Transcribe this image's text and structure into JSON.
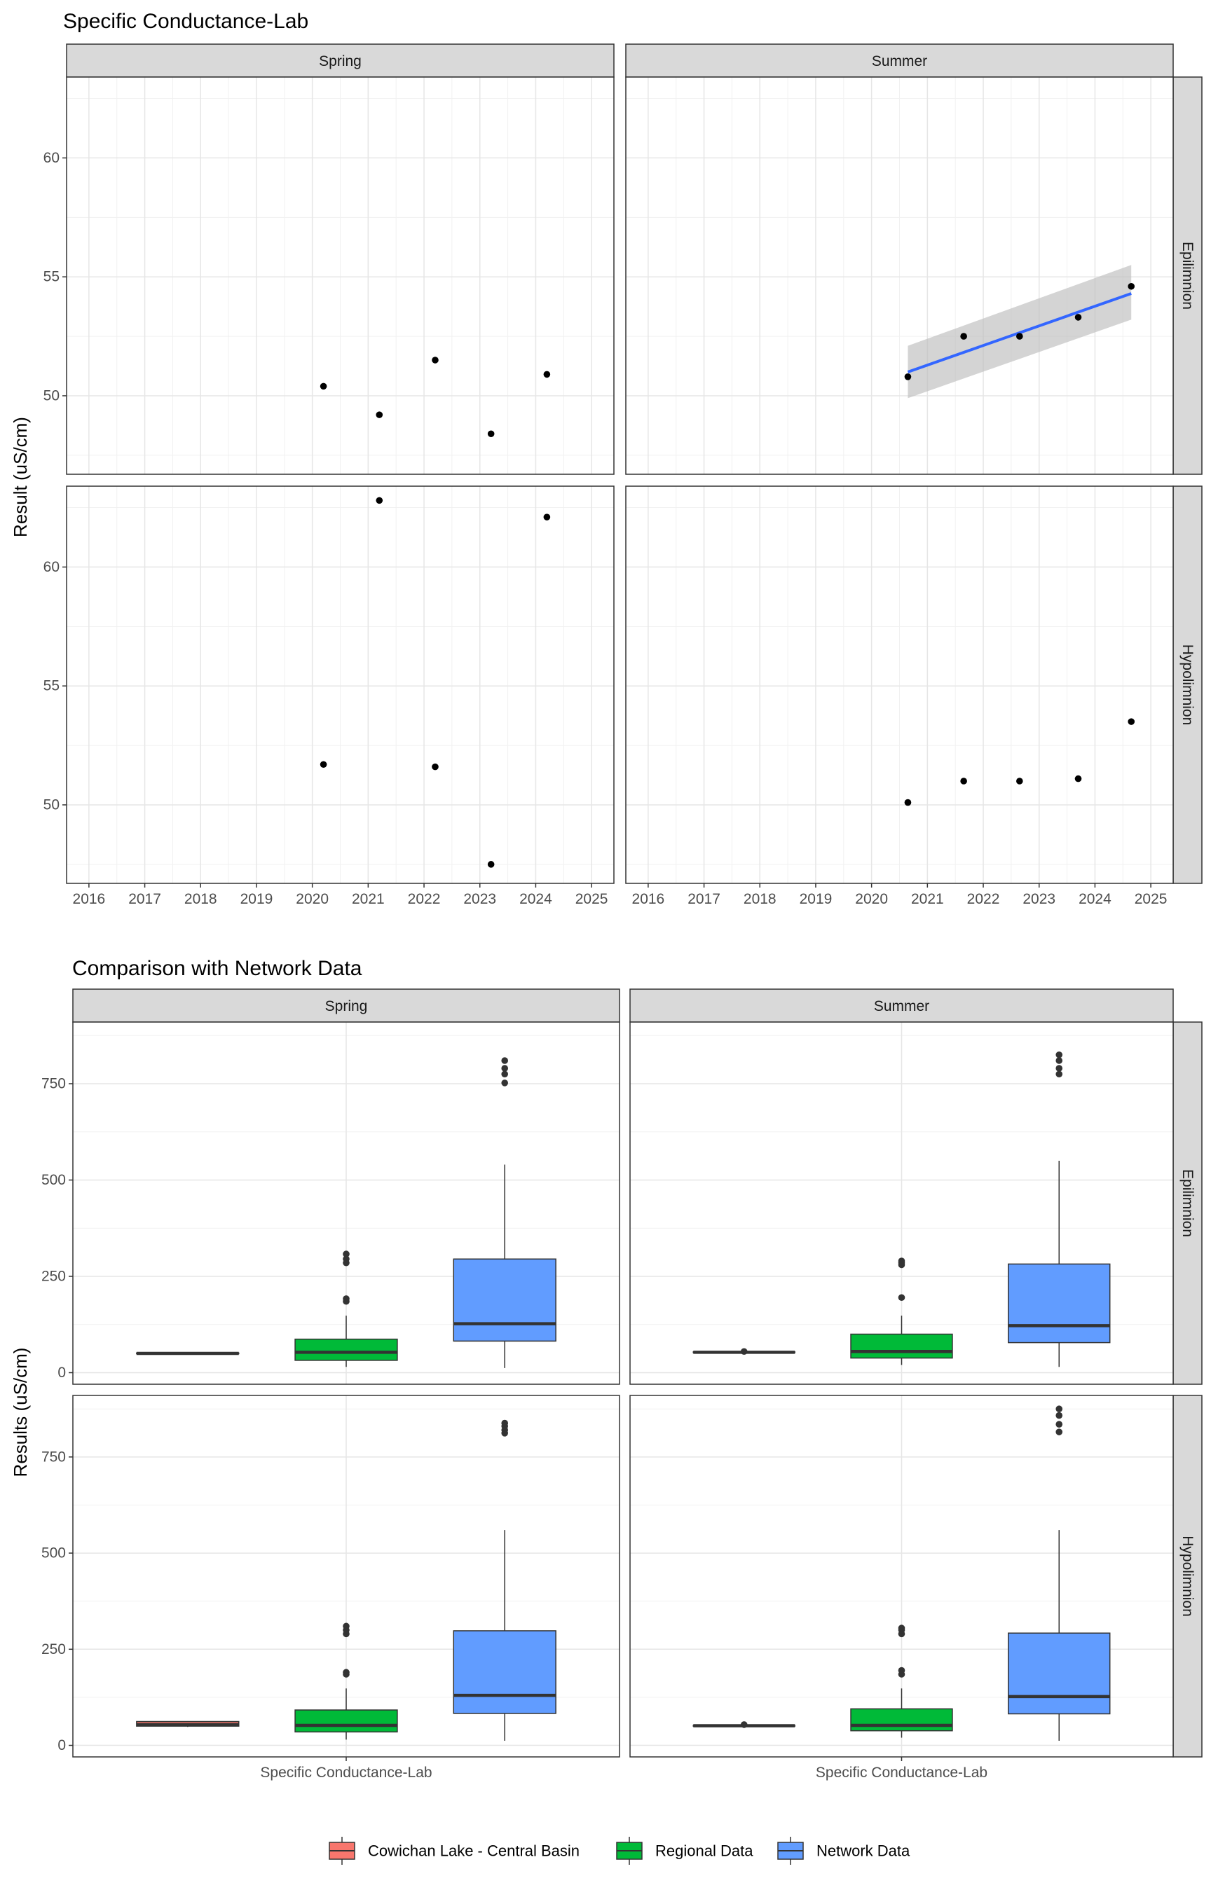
{
  "chart_data": [
    {
      "type": "scatter",
      "title": "Specific Conductance-Lab",
      "ylabel": "Result (uS/cm)",
      "xlabel": "",
      "columns": [
        "Spring",
        "Summer"
      ],
      "rows": [
        "Epilimnion",
        "Hypolimnion"
      ],
      "x_ticks": [
        "2016",
        "2017",
        "2018",
        "2019",
        "2020",
        "2021",
        "2022",
        "2023",
        "2024",
        "2025"
      ],
      "xlim": [
        2015.6,
        2025.4
      ],
      "grid": true,
      "legend": "none",
      "panels": [
        {
          "column": "Spring",
          "row": "Epilimnion",
          "ylim": [
            46.7,
            63.4
          ],
          "y_ticks": [
            50,
            55,
            60
          ],
          "points": [
            [
              2020.2,
              50.4
            ],
            [
              2021.2,
              49.2
            ],
            [
              2022.2,
              51.5
            ],
            [
              2023.2,
              48.4
            ],
            [
              2024.2,
              50.9
            ]
          ]
        },
        {
          "column": "Summer",
          "row": "Epilimnion",
          "ylim": [
            46.7,
            63.4
          ],
          "y_ticks": [
            50,
            55,
            60
          ],
          "points": [
            [
              2020.65,
              50.8
            ],
            [
              2021.65,
              52.5
            ],
            [
              2022.65,
              52.5
            ],
            [
              2023.7,
              53.3
            ],
            [
              2024.65,
              54.6
            ]
          ],
          "trend": {
            "x": [
              2020.65,
              2024.65
            ],
            "y": [
              51.0,
              54.3
            ],
            "ci_lower": [
              49.9,
              53.2
            ],
            "ci_upper": [
              52.1,
              55.5
            ],
            "color": "#3366ff",
            "band_color": "#bdbdbd"
          }
        },
        {
          "column": "Spring",
          "row": "Hypolimnion",
          "ylim": [
            46.7,
            63.4
          ],
          "y_ticks": [
            50,
            55,
            60
          ],
          "points": [
            [
              2020.2,
              51.7
            ],
            [
              2021.2,
              62.8
            ],
            [
              2022.2,
              51.6
            ],
            [
              2023.2,
              47.5
            ],
            [
              2024.2,
              62.1
            ]
          ]
        },
        {
          "column": "Summer",
          "row": "Hypolimnion",
          "ylim": [
            46.7,
            63.4
          ],
          "y_ticks": [
            50,
            55,
            60
          ],
          "points": [
            [
              2020.65,
              50.1
            ],
            [
              2021.65,
              51.0
            ],
            [
              2022.65,
              51.0
            ],
            [
              2023.7,
              51.1
            ],
            [
              2024.65,
              53.5
            ]
          ]
        }
      ]
    },
    {
      "type": "box",
      "title": "Comparison with Network Data",
      "ylabel": "Results (uS/cm)",
      "xlabel": "",
      "category": "Specific Conductance-Lab",
      "columns": [
        "Spring",
        "Summer"
      ],
      "rows": [
        "Epilimnion",
        "Hypolimnion"
      ],
      "ylim": [
        -30,
        910
      ],
      "y_ticks": [
        0,
        250,
        500,
        750
      ],
      "grid": true,
      "legend": "bottom",
      "series": [
        {
          "name": "Cowichan Lake - Central Basin",
          "color": "#f8766d"
        },
        {
          "name": "Regional Data",
          "color": "#00ba38"
        },
        {
          "name": "Network Data",
          "color": "#619cff"
        }
      ],
      "panels": [
        {
          "column": "Spring",
          "row": "Epilimnion",
          "boxes": [
            {
              "series": "Cowichan Lake - Central Basin",
              "min": 50,
              "q1": 50,
              "median": 50,
              "q3": 51,
              "max": 51,
              "outliers": []
            },
            {
              "series": "Regional Data",
              "min": 15,
              "q1": 32,
              "median": 53,
              "q3": 87,
              "max": 148,
              "outliers": [
                185,
                192,
                285,
                295,
                308
              ]
            },
            {
              "series": "Network Data",
              "min": 12,
              "q1": 82,
              "median": 127,
              "q3": 295,
              "max": 540,
              "outliers": [
                752,
                775,
                790,
                810
              ]
            }
          ]
        },
        {
          "column": "Summer",
          "row": "Epilimnion",
          "boxes": [
            {
              "series": "Cowichan Lake - Central Basin",
              "min": 52,
              "q1": 52,
              "median": 53,
              "q3": 54,
              "max": 55,
              "outliers": [
                55
              ]
            },
            {
              "series": "Regional Data",
              "min": 20,
              "q1": 38,
              "median": 55,
              "q3": 100,
              "max": 148,
              "outliers": [
                195,
                280,
                285,
                290
              ]
            },
            {
              "series": "Network Data",
              "min": 15,
              "q1": 78,
              "median": 122,
              "q3": 282,
              "max": 550,
              "outliers": [
                775,
                790,
                810,
                825
              ]
            }
          ]
        },
        {
          "column": "Spring",
          "row": "Hypolimnion",
          "boxes": [
            {
              "series": "Cowichan Lake - Central Basin",
              "min": 48,
              "q1": 50,
              "median": 54,
              "q3": 62,
              "max": 63,
              "outliers": []
            },
            {
              "series": "Regional Data",
              "min": 15,
              "q1": 35,
              "median": 52,
              "q3": 92,
              "max": 148,
              "outliers": [
                185,
                190,
                290,
                300,
                310
              ]
            },
            {
              "series": "Network Data",
              "min": 12,
              "q1": 83,
              "median": 130,
              "q3": 298,
              "max": 560,
              "outliers": [
                812,
                820,
                830,
                838
              ]
            }
          ]
        },
        {
          "column": "Summer",
          "row": "Hypolimnion",
          "boxes": [
            {
              "series": "Cowichan Lake - Central Basin",
              "min": 50,
              "q1": 50,
              "median": 51,
              "q3": 52,
              "max": 53,
              "outliers": [
                54
              ]
            },
            {
              "series": "Regional Data",
              "min": 20,
              "q1": 38,
              "median": 52,
              "q3": 95,
              "max": 148,
              "outliers": [
                185,
                195,
                290,
                300,
                305
              ]
            },
            {
              "series": "Network Data",
              "min": 12,
              "q1": 82,
              "median": 127,
              "q3": 292,
              "max": 560,
              "outliers": [
                815,
                835,
                858,
                875
              ]
            }
          ]
        }
      ]
    }
  ]
}
